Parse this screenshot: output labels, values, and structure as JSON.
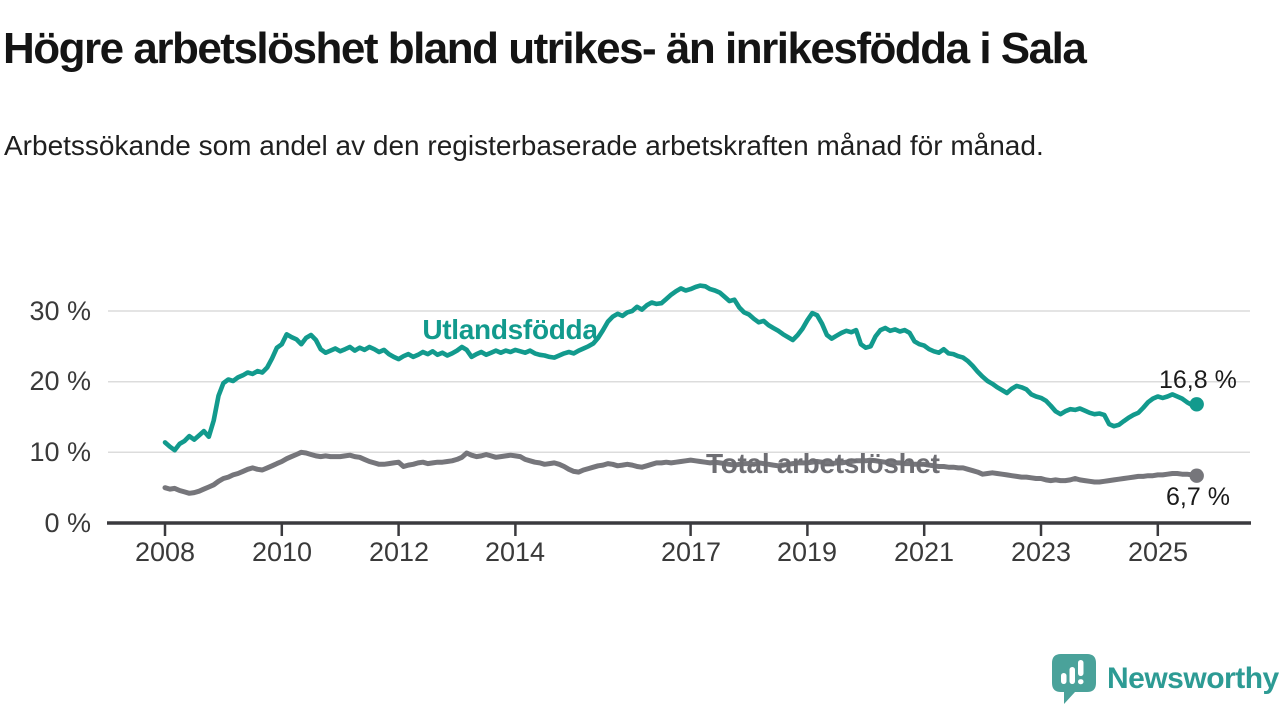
{
  "header": {
    "title": "Högre arbetslöshet bland utrikes- än inrikesfödda i Sala",
    "subtitle": "Arbetssökande som andel av den registerbaserade arbetskraften månad för månad."
  },
  "branding": {
    "logo_text": "Newsworthy",
    "logo_text_color": "#2d9b94",
    "logo_icon_color": "#4aa29a"
  },
  "chart_data": {
    "type": "line",
    "title": "",
    "xlabel": "",
    "ylabel": "",
    "unit": "%",
    "grid": "horizontal",
    "x_axis": {
      "range": [
        2008,
        2026
      ],
      "ticks": [
        "2008",
        "2010",
        "2012",
        "2014",
        "2017",
        "2019",
        "2021",
        "2023",
        "2025"
      ]
    },
    "y_axis": {
      "range": [
        0,
        35
      ],
      "ticks": [
        "0 %",
        "10 %",
        "20 %",
        "30 %"
      ]
    },
    "series": [
      {
        "name": "Utlandsfödda",
        "color": "#129a8d",
        "end_label": "16,8 %",
        "end_value": 16.8,
        "start_year": 2008,
        "frequency": "monthly",
        "monthly_values": [
          11.4,
          10.8,
          10.3,
          11.2,
          11.6,
          12.3,
          11.8,
          12.4,
          13.0,
          12.2,
          14.5,
          18.0,
          19.8,
          20.3,
          20.1,
          20.6,
          20.9,
          21.3,
          21.1,
          21.5,
          21.3,
          22.0,
          23.3,
          24.8,
          25.3,
          26.7,
          26.3,
          26.0,
          25.3,
          26.2,
          26.6,
          25.9,
          24.6,
          24.1,
          24.4,
          24.7,
          24.3,
          24.6,
          24.9,
          24.4,
          24.8,
          24.5,
          24.9,
          24.6,
          24.2,
          24.5,
          23.9,
          23.5,
          23.2,
          23.6,
          23.9,
          23.5,
          23.8,
          24.2,
          23.9,
          24.3,
          23.8,
          24.1,
          23.7,
          24.0,
          24.4,
          24.9,
          24.5,
          23.5,
          23.9,
          24.2,
          23.8,
          24.1,
          24.4,
          24.1,
          24.4,
          24.2,
          24.5,
          24.3,
          24.1,
          24.4,
          24.0,
          23.8,
          23.7,
          23.5,
          23.4,
          23.7,
          24.0,
          24.2,
          24.0,
          24.4,
          24.7,
          25.0,
          25.4,
          26.2,
          27.3,
          28.5,
          29.2,
          29.6,
          29.3,
          29.8,
          30.0,
          30.6,
          30.2,
          30.8,
          31.2,
          31.0,
          31.1,
          31.7,
          32.3,
          32.8,
          33.2,
          32.9,
          33.1,
          33.4,
          33.6,
          33.5,
          33.1,
          32.9,
          32.6,
          32.0,
          31.4,
          31.6,
          30.5,
          29.8,
          29.5,
          28.9,
          28.4,
          28.6,
          28.0,
          27.6,
          27.2,
          26.7,
          26.3,
          25.9,
          26.6,
          27.5,
          28.7,
          29.7,
          29.4,
          28.2,
          26.6,
          26.1,
          26.5,
          26.9,
          27.2,
          27.0,
          27.3,
          25.3,
          24.8,
          25.0,
          26.4,
          27.3,
          27.6,
          27.2,
          27.4,
          27.1,
          27.3,
          26.9,
          25.7,
          25.3,
          25.1,
          24.6,
          24.3,
          24.1,
          24.6,
          24.0,
          23.9,
          23.6,
          23.4,
          22.9,
          22.2,
          21.4,
          20.7,
          20.1,
          19.7,
          19.2,
          18.8,
          18.4,
          19.0,
          19.4,
          19.2,
          18.9,
          18.2,
          17.9,
          17.7,
          17.3,
          16.6,
          15.8,
          15.4,
          15.8,
          16.1,
          16.0,
          16.2,
          15.9,
          15.6,
          15.4,
          15.5,
          15.3,
          14.0,
          13.7,
          13.9,
          14.4,
          14.9,
          15.3,
          15.6,
          16.3,
          17.1,
          17.6,
          17.9,
          17.7,
          17.9,
          18.2,
          17.9,
          17.6,
          17.1,
          16.7,
          16.8
        ]
      },
      {
        "name": "Total arbetslöshet",
        "color": "#76767b",
        "end_label": "6,7 %",
        "end_value": 6.7,
        "start_year": 2008,
        "frequency": "monthly",
        "monthly_values": [
          5.0,
          4.8,
          4.9,
          4.6,
          4.4,
          4.2,
          4.3,
          4.5,
          4.8,
          5.1,
          5.4,
          5.9,
          6.3,
          6.5,
          6.8,
          7.0,
          7.3,
          7.6,
          7.8,
          7.6,
          7.5,
          7.8,
          8.1,
          8.4,
          8.7,
          9.1,
          9.4,
          9.7,
          10.0,
          9.9,
          9.7,
          9.5,
          9.4,
          9.5,
          9.4,
          9.4,
          9.4,
          9.5,
          9.6,
          9.4,
          9.3,
          9.0,
          8.7,
          8.5,
          8.3,
          8.3,
          8.4,
          8.5,
          8.6,
          8.0,
          8.2,
          8.3,
          8.5,
          8.6,
          8.4,
          8.5,
          8.6,
          8.6,
          8.7,
          8.8,
          9.0,
          9.3,
          9.9,
          9.6,
          9.4,
          9.5,
          9.7,
          9.5,
          9.3,
          9.4,
          9.5,
          9.6,
          9.5,
          9.4,
          9.0,
          8.8,
          8.6,
          8.5,
          8.3,
          8.4,
          8.5,
          8.3,
          8.0,
          7.6,
          7.3,
          7.2,
          7.5,
          7.7,
          7.9,
          8.1,
          8.2,
          8.4,
          8.3,
          8.1,
          8.2,
          8.3,
          8.2,
          8.0,
          7.9,
          8.1,
          8.3,
          8.5,
          8.5,
          8.6,
          8.5,
          8.6,
          8.7,
          8.8,
          8.9,
          8.8,
          8.7,
          8.6,
          8.5,
          8.6,
          8.5,
          8.4,
          8.3,
          8.2,
          8.3,
          8.4,
          8.4,
          8.3,
          8.5,
          8.4,
          8.3,
          8.2,
          8.1,
          8.2,
          8.3,
          8.4,
          8.5,
          8.5,
          8.5,
          8.6,
          8.7,
          8.6,
          8.5,
          8.4,
          8.5,
          8.5,
          8.6,
          8.7,
          8.8,
          8.8,
          8.8,
          8.9,
          8.8,
          8.7,
          8.6,
          8.6,
          8.5,
          8.5,
          8.4,
          8.4,
          8.3,
          8.3,
          8.3,
          8.2,
          8.1,
          8.0,
          8.0,
          7.9,
          7.9,
          7.8,
          7.8,
          7.6,
          7.4,
          7.2,
          6.9,
          7.0,
          7.1,
          7.0,
          6.9,
          6.8,
          6.7,
          6.6,
          6.5,
          6.5,
          6.4,
          6.3,
          6.3,
          6.1,
          6.0,
          6.1,
          6.0,
          6.0,
          6.1,
          6.3,
          6.1,
          6.0,
          5.9,
          5.8,
          5.8,
          5.9,
          6.0,
          6.1,
          6.2,
          6.3,
          6.4,
          6.5,
          6.6,
          6.6,
          6.7,
          6.7,
          6.8,
          6.8,
          6.9,
          7.0,
          7.0,
          6.9,
          6.9,
          6.8,
          6.7
        ]
      }
    ]
  }
}
